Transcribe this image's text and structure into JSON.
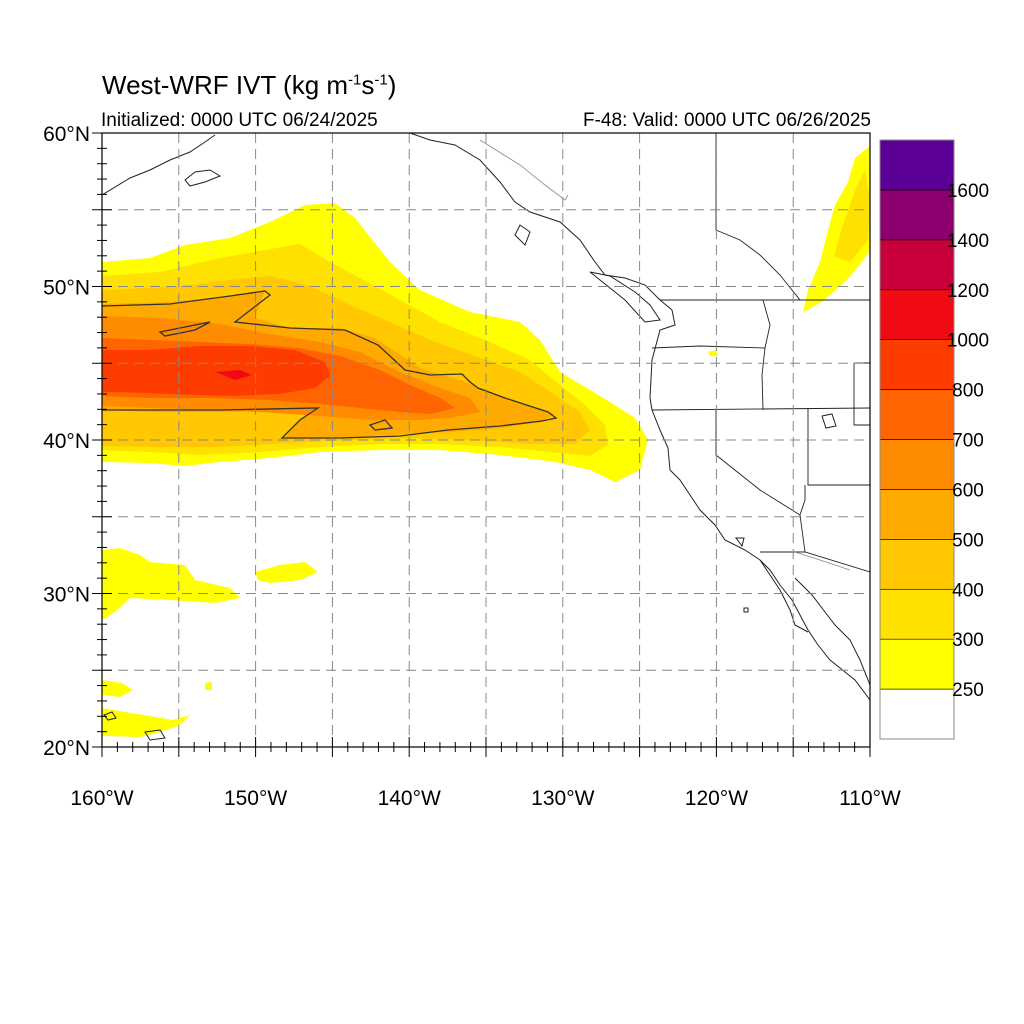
{
  "title": {
    "main": "West-WRF IVT (kg m",
    "sup1": "-1",
    "mid": "s",
    "sup2": "-1",
    "end": ")"
  },
  "initialized": "Initialized: 0000 UTC 06/24/2025",
  "valid": "F-48: Valid: 0000 UTC 06/26/2025",
  "map": {
    "lat_range": [
      20,
      60
    ],
    "lon_range": [
      -160,
      -110
    ],
    "grid": true,
    "lat_ticks": [
      "20°N",
      "30°N",
      "40°N",
      "50°N",
      "60°N"
    ],
    "lon_ticks": [
      "160°W",
      "150°W",
      "140°W",
      "130°W",
      "120°W",
      "110°W"
    ],
    "contour_level": 500
  },
  "colorbar": {
    "levels": [
      "250",
      "300",
      "400",
      "500",
      "600",
      "700",
      "800",
      "1000",
      "1200",
      "1400",
      "1600"
    ],
    "colors": [
      "#ffffff",
      "#ffff00",
      "#ffe100",
      "#ffc800",
      "#ffaa00",
      "#ff8c00",
      "#ff6400",
      "#ff3c00",
      "#f00a14",
      "#c8003c",
      "#8c006e",
      "#5a0096"
    ]
  }
}
